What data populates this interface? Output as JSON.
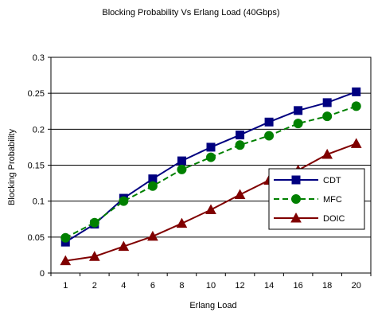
{
  "chart_data": {
    "type": "line",
    "title": "Blocking Probability Vs Erlang Load (40Gbps)",
    "xlabel": "Erlang Load",
    "ylabel": "Blocking Probability",
    "categories": [
      "1",
      "2",
      "4",
      "6",
      "8",
      "10",
      "12",
      "14",
      "16",
      "18",
      "20"
    ],
    "ylim": [
      0,
      0.3
    ],
    "yticks": [
      "0",
      "0.05",
      "0.1",
      "0.15",
      "0.2",
      "0.25",
      "0.3"
    ],
    "grid": "horizontal",
    "legend_position": "right",
    "series": [
      {
        "name": "CDT",
        "marker": "square",
        "dash": "solid",
        "color": "#000080",
        "values": [
          0.043,
          0.068,
          0.104,
          0.131,
          0.156,
          0.175,
          0.192,
          0.21,
          0.226,
          0.237,
          0.252
        ]
      },
      {
        "name": "MFC",
        "marker": "circle",
        "dash": "dashed",
        "color": "#008000",
        "values": [
          0.049,
          0.07,
          0.1,
          0.121,
          0.144,
          0.161,
          0.178,
          0.191,
          0.208,
          0.218,
          0.232
        ]
      },
      {
        "name": "DOIC",
        "marker": "triangle",
        "dash": "solid",
        "color": "#800000",
        "values": [
          0.017,
          0.023,
          0.037,
          0.051,
          0.069,
          0.088,
          0.109,
          0.129,
          0.143,
          0.165,
          0.18
        ]
      }
    ]
  }
}
